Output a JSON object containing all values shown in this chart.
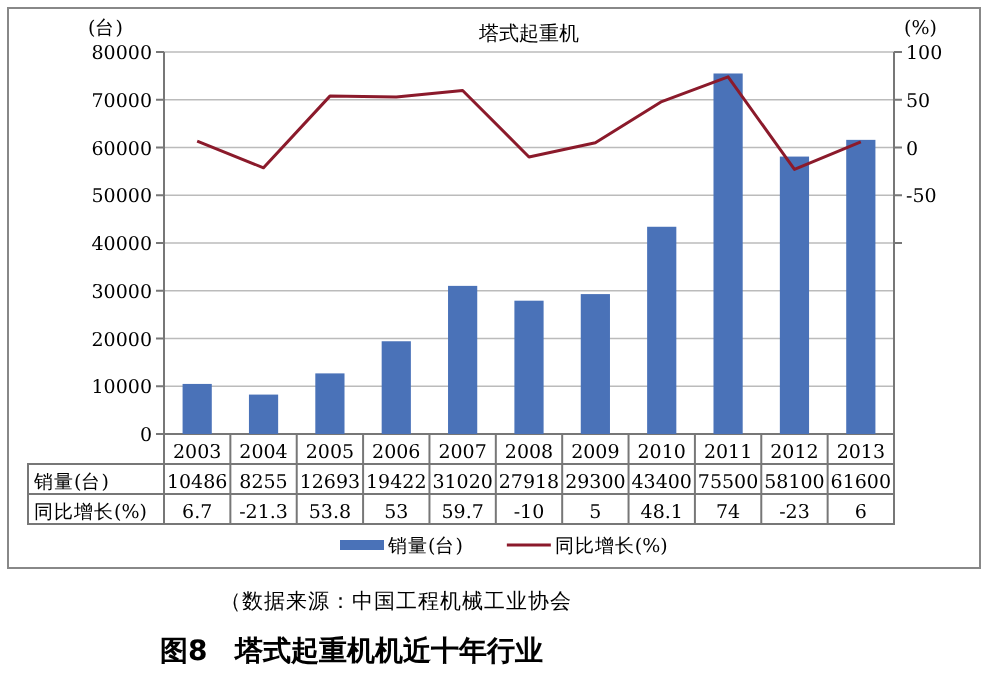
{
  "chart_data": {
    "type": "bar",
    "title": "塔式起重机",
    "ylabel": "(台)",
    "y2label": "(%)",
    "categories": [
      "2003",
      "2004",
      "2005",
      "2006",
      "2007",
      "2008",
      "2009",
      "2010",
      "2011",
      "2012",
      "2013"
    ],
    "series": [
      {
        "name": "销量(台)",
        "color": "#4a72b8",
        "values": [
          10486,
          8255,
          12693,
          19422,
          31020,
          27918,
          29300,
          43400,
          75500,
          58100,
          61600
        ]
      },
      {
        "name": "同比增长(%)",
        "type": "line",
        "axis": "y2",
        "color": "#8b1a2b",
        "values": [
          6.7,
          -21.3,
          53.8,
          53,
          59.7,
          -10,
          5,
          48.1,
          74,
          -23,
          6
        ]
      }
    ],
    "ylim": [
      0,
      80000
    ],
    "yticks": [
      0,
      10000,
      20000,
      30000,
      40000,
      50000,
      60000,
      70000,
      80000
    ],
    "y2lim": [
      -300,
      100
    ],
    "y2ticks": [
      100,
      50,
      0,
      -50,
      {
        "value": -100,
        "label": null
      }
    ],
    "grid": "y",
    "legend": "bottom",
    "data_labels": true,
    "annotations": [
      "（数据来源：中国工程机械工业协会",
      "图8　塔式起重机机近十年行业"
    ]
  }
}
